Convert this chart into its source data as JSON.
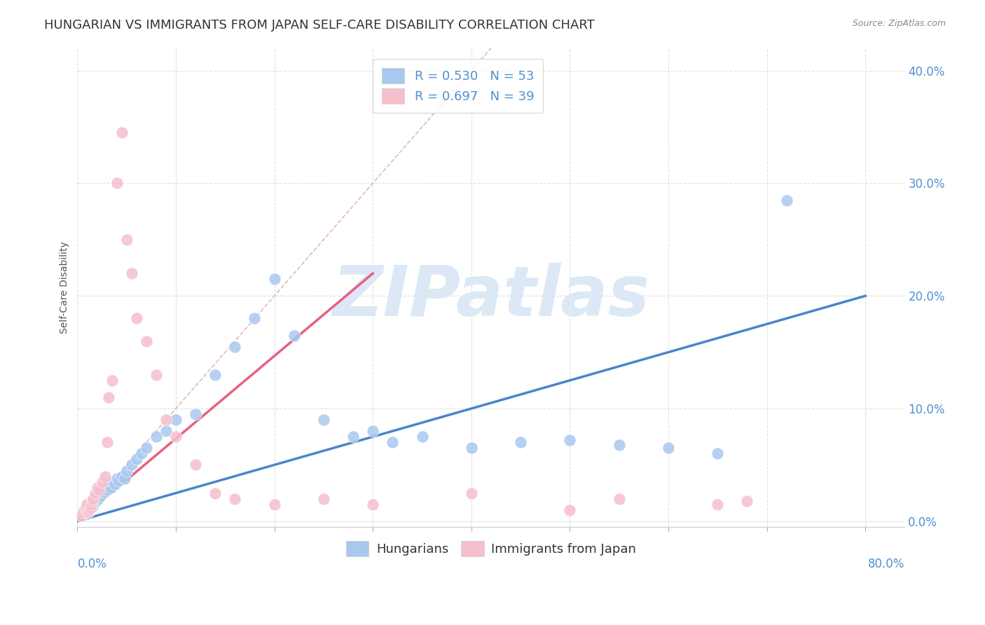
{
  "title": "HUNGARIAN VS IMMIGRANTS FROM JAPAN SELF-CARE DISABILITY CORRELATION CHART",
  "source": "Source: ZipAtlas.com",
  "ylabel": "Self-Care Disability",
  "xlim": [
    0.0,
    0.84
  ],
  "ylim": [
    -0.005,
    0.42
  ],
  "blue_color": "#a8c8ee",
  "pink_color": "#f5bfcc",
  "blue_line_color": "#4a86c8",
  "pink_line_color": "#e86080",
  "diagonal_color": "#e0b8c0",
  "background_color": "#ffffff",
  "grid_color": "#dddddd",
  "tick_color": "#5090d0",
  "title_color": "#333333",
  "watermark": "ZIPatlas",
  "watermark_color": "#dce8f5",
  "watermark_fontsize": 72,
  "title_fontsize": 13,
  "axis_label_fontsize": 10,
  "tick_fontsize": 12,
  "legend_fontsize": 13,
  "blue_scatter_x": [
    0.005,
    0.007,
    0.008,
    0.01,
    0.012,
    0.013,
    0.015,
    0.016,
    0.017,
    0.018,
    0.019,
    0.02,
    0.021,
    0.022,
    0.023,
    0.025,
    0.027,
    0.028,
    0.03,
    0.032,
    0.034,
    0.036,
    0.038,
    0.04,
    0.042,
    0.045,
    0.048,
    0.05,
    0.055,
    0.06,
    0.065,
    0.07,
    0.08,
    0.09,
    0.1,
    0.12,
    0.14,
    0.16,
    0.18,
    0.2,
    0.22,
    0.25,
    0.28,
    0.3,
    0.32,
    0.35,
    0.4,
    0.45,
    0.5,
    0.55,
    0.6,
    0.65,
    0.72
  ],
  "blue_scatter_y": [
    0.005,
    0.01,
    0.008,
    0.012,
    0.01,
    0.015,
    0.013,
    0.018,
    0.016,
    0.02,
    0.018,
    0.022,
    0.02,
    0.025,
    0.022,
    0.028,
    0.026,
    0.03,
    0.028,
    0.032,
    0.03,
    0.035,
    0.033,
    0.038,
    0.036,
    0.04,
    0.038,
    0.045,
    0.05,
    0.055,
    0.06,
    0.065,
    0.075,
    0.08,
    0.09,
    0.095,
    0.13,
    0.155,
    0.18,
    0.215,
    0.165,
    0.09,
    0.075,
    0.08,
    0.07,
    0.075,
    0.065,
    0.07,
    0.072,
    0.068,
    0.065,
    0.06,
    0.285
  ],
  "pink_scatter_x": [
    0.004,
    0.006,
    0.008,
    0.009,
    0.01,
    0.011,
    0.012,
    0.013,
    0.014,
    0.015,
    0.016,
    0.018,
    0.02,
    0.022,
    0.025,
    0.028,
    0.03,
    0.032,
    0.035,
    0.04,
    0.045,
    0.05,
    0.055,
    0.06,
    0.07,
    0.08,
    0.09,
    0.1,
    0.12,
    0.14,
    0.16,
    0.2,
    0.25,
    0.3,
    0.4,
    0.5,
    0.55,
    0.65,
    0.68
  ],
  "pink_scatter_y": [
    0.005,
    0.008,
    0.01,
    0.012,
    0.015,
    0.008,
    0.01,
    0.012,
    0.015,
    0.018,
    0.02,
    0.025,
    0.03,
    0.028,
    0.035,
    0.04,
    0.07,
    0.11,
    0.125,
    0.3,
    0.345,
    0.25,
    0.22,
    0.18,
    0.16,
    0.13,
    0.09,
    0.075,
    0.05,
    0.025,
    0.02,
    0.015,
    0.02,
    0.015,
    0.025,
    0.01,
    0.02,
    0.015,
    0.018
  ],
  "blue_line_x": [
    0.0,
    0.8
  ],
  "blue_line_y": [
    0.0,
    0.2
  ],
  "pink_line_x": [
    0.0,
    0.3
  ],
  "pink_line_y": [
    0.0,
    0.22
  ],
  "diag_line_x": [
    0.0,
    0.42
  ],
  "diag_line_y": [
    0.0,
    0.42
  ],
  "xtick_positions": [
    0.0,
    0.1,
    0.2,
    0.3,
    0.4,
    0.5,
    0.6,
    0.7,
    0.8
  ],
  "ytick_positions": [
    0.0,
    0.1,
    0.2,
    0.3,
    0.4
  ],
  "ytick_labels": [
    "0.0%",
    "10.0%",
    "20.0%",
    "30.0%",
    "40.0%"
  ]
}
